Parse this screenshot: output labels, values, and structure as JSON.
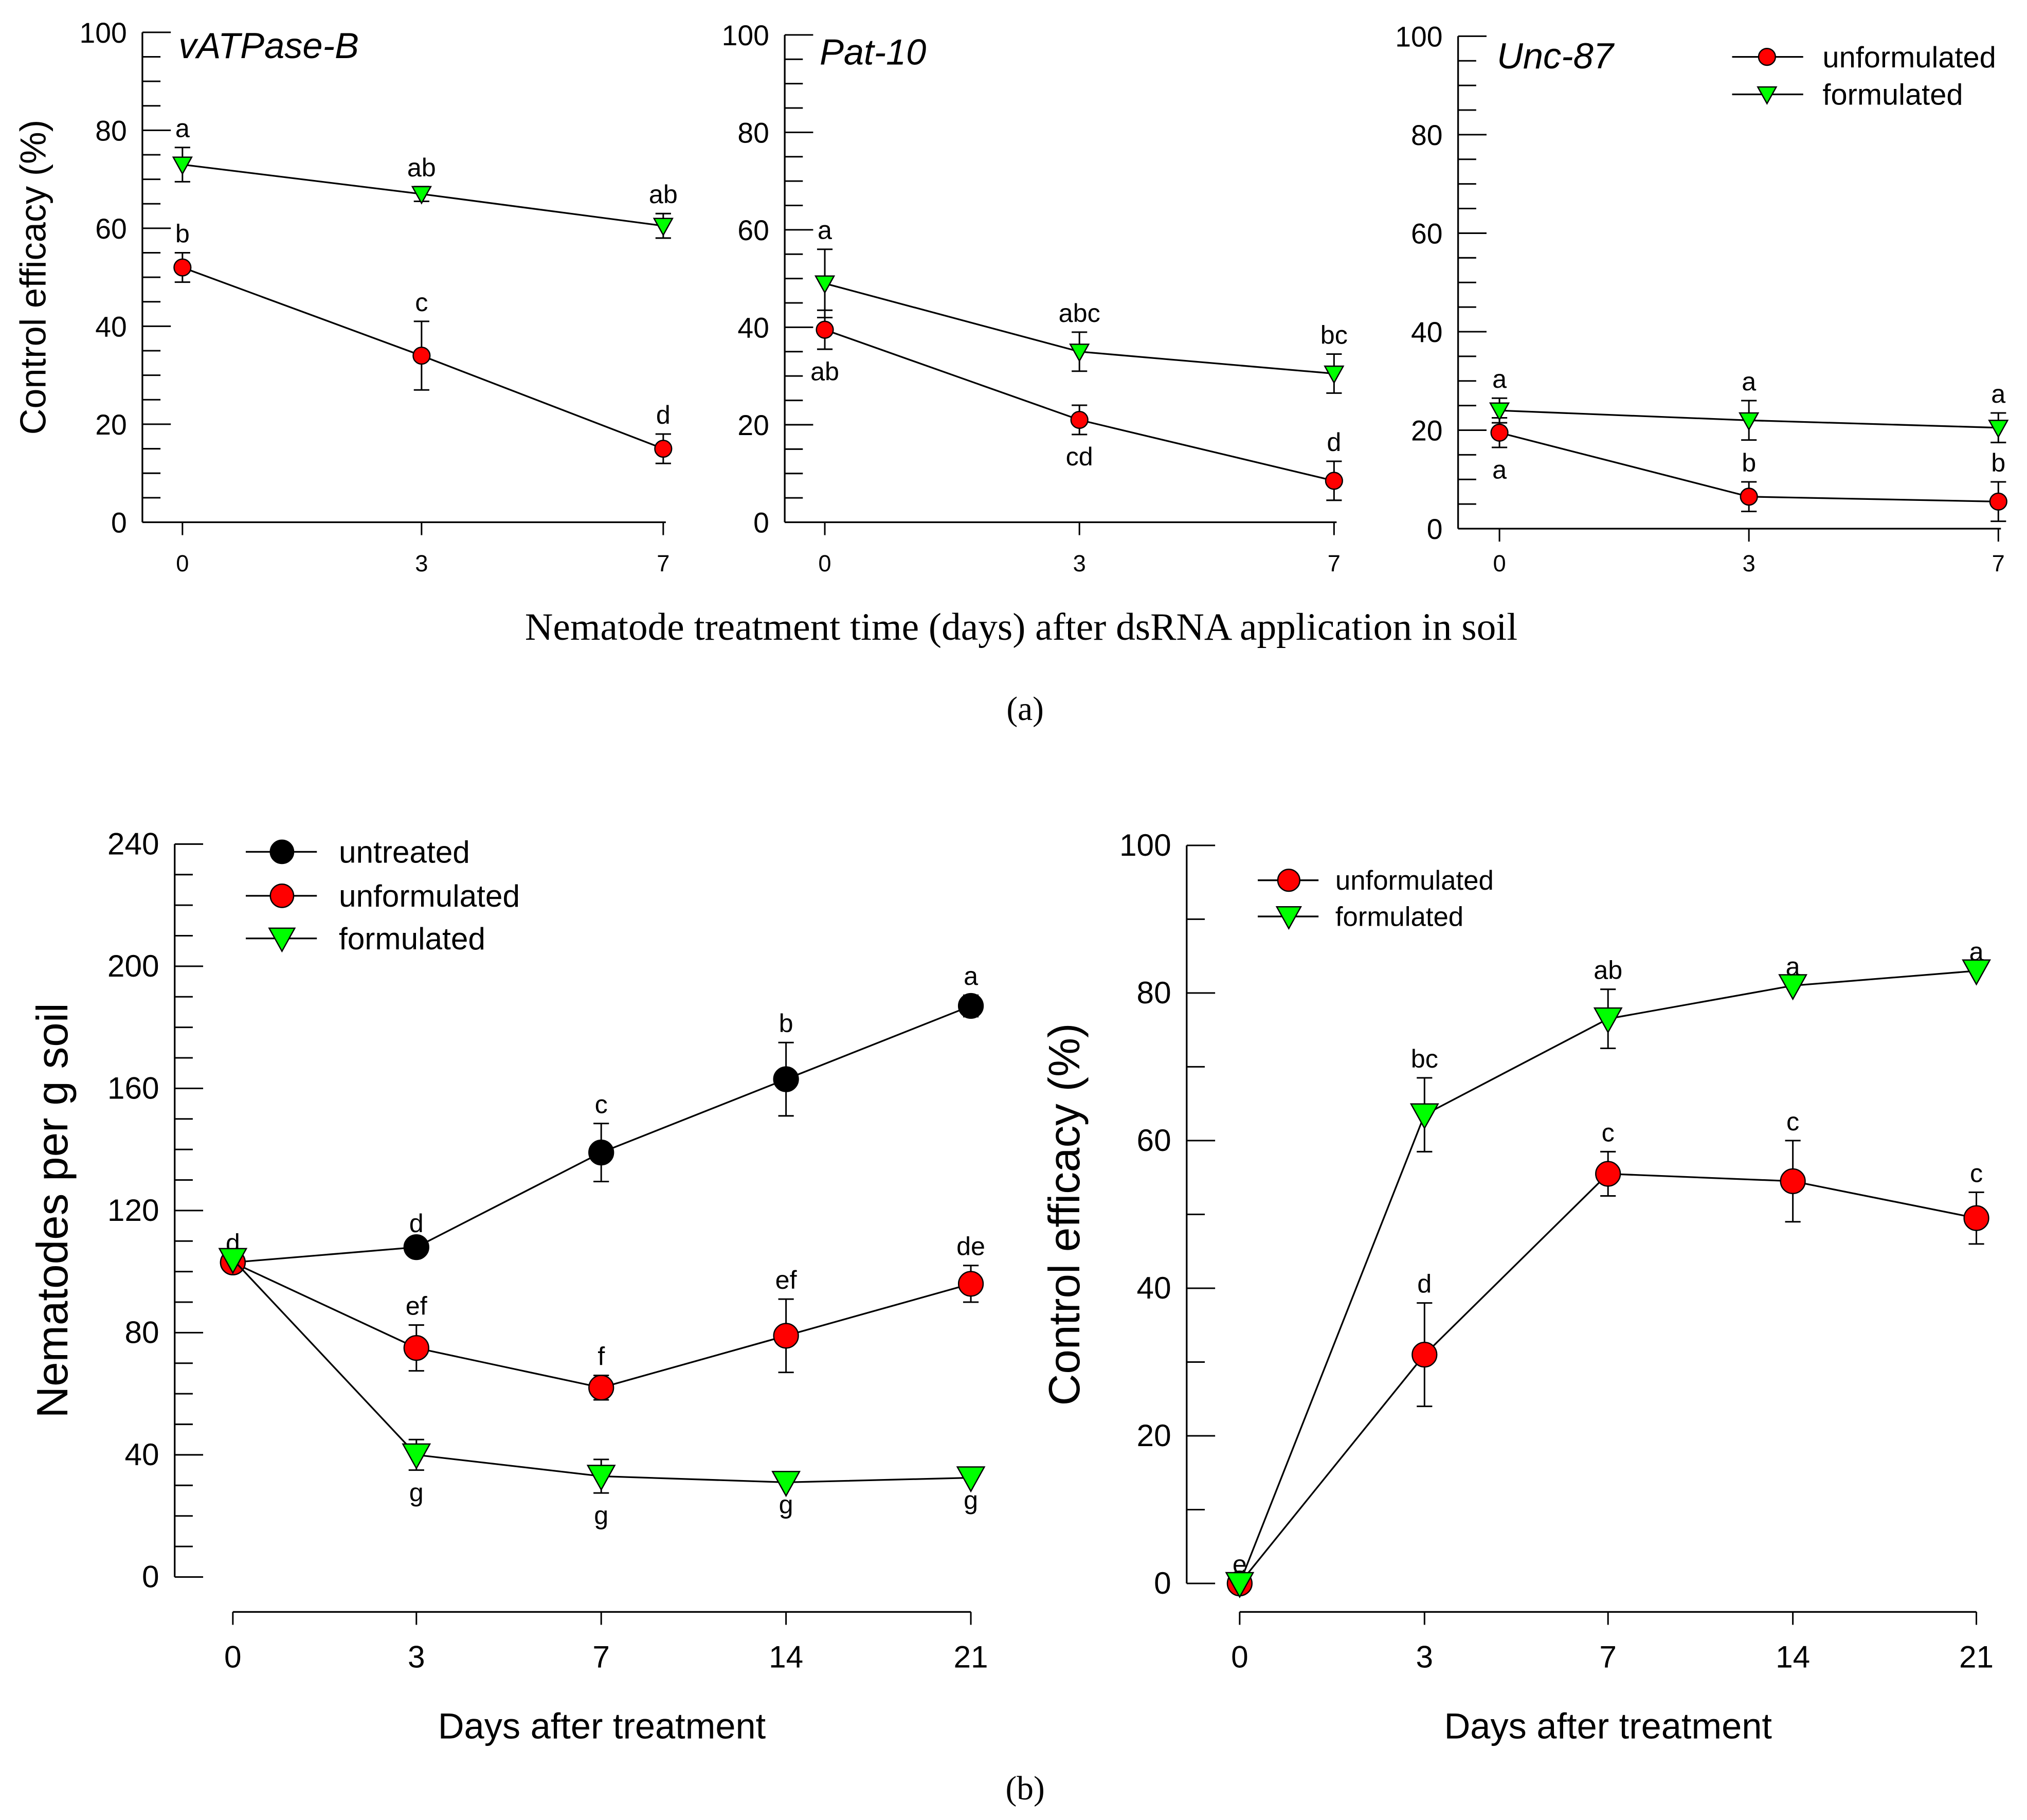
{
  "figure": {
    "panel_a_xlabel": "Nematode treatment time (days) after dsRNA application in soil",
    "panel_a_label": "(a)",
    "panel_b_label": "(b)"
  },
  "colors": {
    "untreated": "#000000",
    "unformulated": "#ff0000",
    "formulated": "#00ff00"
  },
  "chart_data": [
    {
      "type": "line",
      "title": "vATPase-B",
      "ylabel": "Control efficacy (%)",
      "xlabel": "",
      "x": [
        "0",
        "3",
        "7"
      ],
      "ylim": [
        0,
        100
      ],
      "yticks": [
        0,
        20,
        40,
        60,
        80,
        100
      ],
      "series": [
        {
          "name": "unformulated",
          "marker": "circle",
          "values": [
            52,
            34,
            15
          ],
          "errors": [
            3,
            7,
            3
          ],
          "letters": [
            "b",
            "c",
            "d"
          ],
          "letter_pos": [
            "above",
            "above",
            "above"
          ]
        },
        {
          "name": "formulated",
          "marker": "triangle-down",
          "values": [
            73,
            67,
            60.5
          ],
          "errors": [
            3.5,
            1.5,
            2.5
          ],
          "letters": [
            "a",
            "ab",
            "ab"
          ],
          "letter_pos": [
            "above",
            "above",
            "above"
          ]
        }
      ]
    },
    {
      "type": "line",
      "title": "Pat-10",
      "ylabel": "",
      "xlabel": "",
      "x": [
        "0",
        "3",
        "7"
      ],
      "ylim": [
        0,
        100
      ],
      "yticks": [
        0,
        20,
        40,
        60,
        80,
        100
      ],
      "series": [
        {
          "name": "unformulated",
          "marker": "circle",
          "values": [
            39.5,
            21,
            8.5
          ],
          "errors": [
            4,
            3,
            4
          ],
          "letters": [
            "ab",
            "cd",
            "d"
          ],
          "letter_pos": [
            "below",
            "below",
            "above"
          ]
        },
        {
          "name": "formulated",
          "marker": "triangle-down",
          "values": [
            49,
            35,
            30.5
          ],
          "errors": [
            7,
            4,
            4
          ],
          "letters": [
            "a",
            "abc",
            "bc"
          ],
          "letter_pos": [
            "above",
            "above",
            "above"
          ]
        }
      ]
    },
    {
      "type": "line",
      "title": "Unc-87",
      "ylabel": "",
      "xlabel": "",
      "legend": "top-right",
      "legend_entries": [
        "unformulated",
        "formulated"
      ],
      "x": [
        "0",
        "3",
        "7"
      ],
      "ylim": [
        0,
        100
      ],
      "yticks": [
        0,
        20,
        40,
        60,
        80,
        100
      ],
      "series": [
        {
          "name": "unformulated",
          "marker": "circle",
          "values": [
            19.5,
            6.5,
            5.5
          ],
          "errors": [
            3,
            3,
            4
          ],
          "letters": [
            "a",
            "b",
            "b"
          ],
          "letter_pos": [
            "below",
            "above",
            "above"
          ]
        },
        {
          "name": "formulated",
          "marker": "triangle-down",
          "values": [
            24,
            22,
            20.5
          ],
          "errors": [
            2.5,
            4,
            3
          ],
          "letters": [
            "a",
            "a",
            "a"
          ],
          "letter_pos": [
            "above",
            "above",
            "above"
          ]
        }
      ]
    },
    {
      "type": "line",
      "title": "",
      "ylabel": "Nematodes per g soil",
      "xlabel": "Days after treatment",
      "legend": "top-left",
      "legend_entries": [
        "untreated",
        "unformulated",
        "formulated"
      ],
      "x": [
        "0",
        "3",
        "7",
        "14",
        "21"
      ],
      "ylim": [
        0,
        240
      ],
      "yticks": [
        0,
        40,
        80,
        120,
        160,
        200,
        240
      ],
      "series": [
        {
          "name": "untreated",
          "marker": "circle",
          "values": [
            103,
            108,
            139,
            163,
            187
          ],
          "errors": [
            0,
            1.5,
            9.5,
            12,
            3.5
          ],
          "letters": [
            "d",
            "d",
            "c",
            "b",
            "a"
          ],
          "letter_pos": [
            "above",
            "above",
            "above",
            "above",
            "above"
          ]
        },
        {
          "name": "unformulated",
          "marker": "circle",
          "values": [
            103,
            75,
            62,
            79,
            96
          ],
          "errors": [
            0,
            7.5,
            4,
            12,
            6
          ],
          "letters": [
            "",
            "ef",
            "f",
            "ef",
            "de"
          ],
          "letter_pos": [
            "above",
            "above",
            "above",
            "above",
            "above"
          ]
        },
        {
          "name": "formulated",
          "marker": "triangle-down",
          "values": [
            104,
            40,
            33,
            31,
            32.5
          ],
          "errors": [
            0,
            5,
            5.5,
            0,
            0
          ],
          "letters": [
            "",
            "g",
            "g",
            "g",
            "g"
          ],
          "letter_pos": [
            "below",
            "below",
            "below",
            "below",
            "below"
          ]
        }
      ]
    },
    {
      "type": "line",
      "title": "",
      "ylabel": "Control efficacy (%)",
      "xlabel": "Days after treatment",
      "legend": "top-left",
      "legend_entries": [
        "unformulated",
        "formulated"
      ],
      "x": [
        "0",
        "3",
        "7",
        "14",
        "21"
      ],
      "ylim": [
        0,
        100
      ],
      "yticks": [
        0,
        20,
        40,
        60,
        80,
        100
      ],
      "series": [
        {
          "name": "unformulated",
          "marker": "circle",
          "values": [
            0,
            31,
            55.5,
            54.5,
            49.5
          ],
          "errors": [
            0,
            7,
            3,
            5.5,
            3.5
          ],
          "letters": [
            "e",
            "d",
            "c",
            "c",
            "c"
          ],
          "letter_pos": [
            "above",
            "above",
            "above",
            "above",
            "above"
          ]
        },
        {
          "name": "formulated",
          "marker": "triangle-down",
          "values": [
            0,
            63.5,
            76.5,
            81,
            83
          ],
          "errors": [
            0,
            5,
            4,
            0,
            0
          ],
          "letters": [
            "",
            "bc",
            "ab",
            "a",
            "a"
          ],
          "letter_pos": [
            "above",
            "above",
            "above",
            "above",
            "above"
          ]
        }
      ]
    }
  ]
}
